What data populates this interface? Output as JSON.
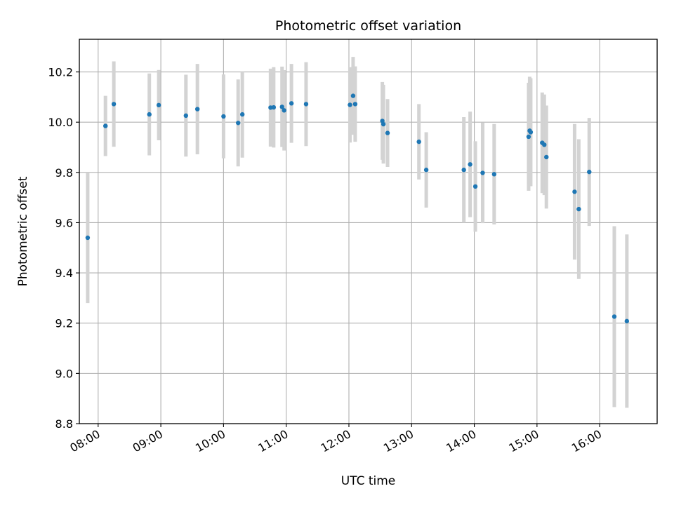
{
  "chart_data": {
    "type": "scatter",
    "title": "Photometric offset variation",
    "xlabel": "UTC time",
    "ylabel": "Photometric offset",
    "x_unit": "hours (UTC)",
    "xlim": [
      "07:42",
      "16:55"
    ],
    "ylim": [
      8.8,
      10.33
    ],
    "grid": true,
    "x_ticks": [
      "08:00",
      "09:00",
      "10:00",
      "11:00",
      "12:00",
      "13:00",
      "14:00",
      "15:00",
      "16:00"
    ],
    "y_ticks": [
      "8.8",
      "9.0",
      "9.2",
      "9.4",
      "9.6",
      "9.8",
      "10.0",
      "10.2"
    ],
    "colors": {
      "point": "#1f77b4",
      "errorbar": "#d3d3d3",
      "grid": "#b0b0b0"
    },
    "points": [
      {
        "x": "07:50",
        "y": 9.54,
        "err": 0.26
      },
      {
        "x": "08:07",
        "y": 9.985,
        "err": 0.12
      },
      {
        "x": "08:15",
        "y": 10.072,
        "err": 0.17
      },
      {
        "x": "08:49",
        "y": 10.031,
        "err": 0.163
      },
      {
        "x": "08:58",
        "y": 10.068,
        "err": 0.14
      },
      {
        "x": "09:24",
        "y": 10.026,
        "err": 0.163
      },
      {
        "x": "09:35",
        "y": 10.052,
        "err": 0.18
      },
      {
        "x": "10:00",
        "y": 10.023,
        "err": 0.167
      },
      {
        "x": "10:14",
        "y": 9.997,
        "err": 0.173
      },
      {
        "x": "10:18",
        "y": 10.031,
        "err": 0.172
      },
      {
        "x": "10:45",
        "y": 10.058,
        "err": 0.155
      },
      {
        "x": "10:48",
        "y": 10.059,
        "err": 0.16
      },
      {
        "x": "10:56",
        "y": 10.061,
        "err": 0.16
      },
      {
        "x": "10:58",
        "y": 10.047,
        "err": 0.16
      },
      {
        "x": "11:05",
        "y": 10.075,
        "err": 0.157
      },
      {
        "x": "11:19",
        "y": 10.072,
        "err": 0.167
      },
      {
        "x": "12:01",
        "y": 10.069,
        "err": 0.15
      },
      {
        "x": "12:04",
        "y": 10.105,
        "err": 0.155
      },
      {
        "x": "12:06",
        "y": 10.072,
        "err": 0.15
      },
      {
        "x": "12:32",
        "y": 10.005,
        "err": 0.155
      },
      {
        "x": "12:33",
        "y": 9.992,
        "err": 0.157
      },
      {
        "x": "12:37",
        "y": 9.957,
        "err": 0.135
      },
      {
        "x": "13:07",
        "y": 9.922,
        "err": 0.15
      },
      {
        "x": "13:14",
        "y": 9.81,
        "err": 0.15
      },
      {
        "x": "13:50",
        "y": 9.81,
        "err": 0.21
      },
      {
        "x": "13:56",
        "y": 9.832,
        "err": 0.21
      },
      {
        "x": "14:01",
        "y": 9.744,
        "err": 0.18
      },
      {
        "x": "14:08",
        "y": 9.798,
        "err": 0.2
      },
      {
        "x": "14:19",
        "y": 9.793,
        "err": 0.2
      },
      {
        "x": "14:52",
        "y": 9.942,
        "err": 0.215
      },
      {
        "x": "14:53",
        "y": 9.966,
        "err": 0.215
      },
      {
        "x": "14:54",
        "y": 9.96,
        "err": 0.215
      },
      {
        "x": "15:05",
        "y": 9.918,
        "err": 0.2
      },
      {
        "x": "15:07",
        "y": 9.91,
        "err": 0.2
      },
      {
        "x": "15:09",
        "y": 9.861,
        "err": 0.205
      },
      {
        "x": "15:36",
        "y": 9.723,
        "err": 0.27
      },
      {
        "x": "15:40",
        "y": 9.654,
        "err": 0.278
      },
      {
        "x": "15:50",
        "y": 9.802,
        "err": 0.215
      },
      {
        "x": "16:14",
        "y": 9.226,
        "err": 0.36
      },
      {
        "x": "16:26",
        "y": 9.208,
        "err": 0.345
      }
    ]
  }
}
